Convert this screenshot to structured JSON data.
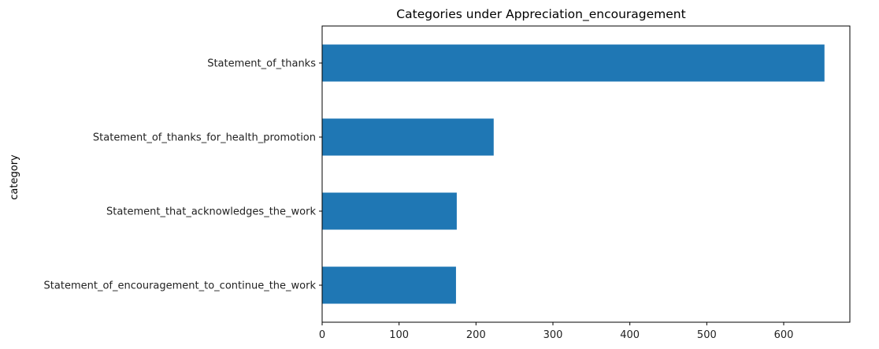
{
  "chart_data": {
    "type": "bar",
    "orientation": "horizontal",
    "title": "Categories under Appreciation_encouragement",
    "xlabel": "",
    "ylabel": "category",
    "categories": [
      "Statement_of_thanks",
      "Statement_of_thanks_for_health_promotion",
      "Statement_that_acknowledges_the_work",
      "Statement_of_encouragement_to_continue_the_work"
    ],
    "values": [
      653,
      223,
      175,
      174
    ],
    "xlim": [
      0,
      686
    ],
    "xticks": [
      0,
      100,
      200,
      300,
      400,
      500,
      600
    ],
    "grid": false,
    "legend": "none",
    "bar_color": "#1f77b4"
  }
}
